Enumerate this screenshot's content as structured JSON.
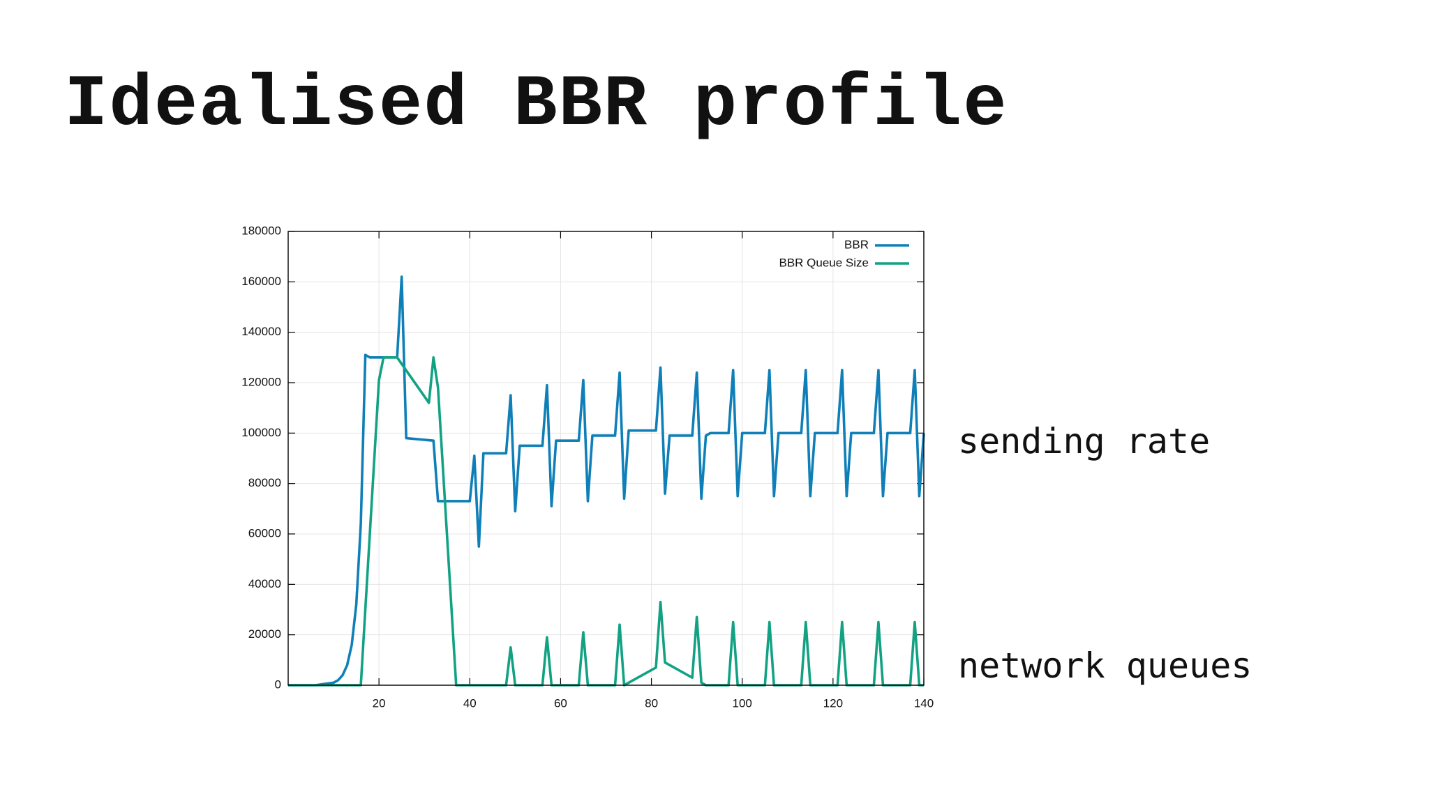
{
  "chart_data": {
    "type": "line",
    "title": "Idealised BBR profile",
    "annotations": [
      "sending rate",
      "network queues"
    ],
    "xlim": [
      0,
      140
    ],
    "xticks": [
      20,
      40,
      60,
      80,
      100,
      120,
      140
    ],
    "ylim": [
      0,
      180000
    ],
    "yticks": [
      0,
      20000,
      40000,
      60000,
      80000,
      100000,
      120000,
      140000,
      160000,
      180000
    ],
    "grid": true,
    "legend": "top-right",
    "series": [
      {
        "name": "BBR",
        "color": "#0f7fb8",
        "x": [
          0,
          2,
          4,
          6,
          8,
          10,
          11,
          12,
          13,
          14,
          15,
          16,
          17,
          18,
          24,
          25,
          26,
          32,
          33,
          40,
          41,
          42,
          43,
          48,
          49,
          50,
          51,
          56,
          57,
          58,
          59,
          64,
          65,
          66,
          67,
          72,
          73,
          74,
          75,
          81,
          82,
          83,
          84,
          89,
          90,
          91,
          92,
          93,
          97,
          98,
          99,
          100,
          105,
          106,
          107,
          108,
          113,
          114,
          115,
          116,
          121,
          122,
          123,
          124,
          129,
          130,
          131,
          132,
          137,
          138,
          139,
          140
        ],
        "values": [
          0,
          0,
          0,
          0,
          500,
          1000,
          2000,
          4000,
          8000,
          16000,
          32000,
          64000,
          131000,
          130000,
          130000,
          162000,
          98000,
          97000,
          73000,
          73000,
          91000,
          55000,
          92000,
          92000,
          115000,
          69000,
          95000,
          95000,
          119000,
          71000,
          97000,
          97000,
          121000,
          73000,
          99000,
          99000,
          124000,
          74000,
          101000,
          101000,
          126000,
          76000,
          99000,
          99000,
          124000,
          74000,
          99000,
          100000,
          100000,
          125000,
          75000,
          100000,
          100000,
          125000,
          75000,
          100000,
          100000,
          125000,
          75000,
          100000,
          100000,
          125000,
          75000,
          100000,
          100000,
          125000,
          75000,
          100000,
          100000,
          125000,
          75000,
          100000
        ]
      },
      {
        "name": "BBR Queue Size",
        "color": "#12a283",
        "x": [
          0,
          16,
          20,
          21,
          24,
          31,
          32,
          33,
          37,
          48,
          49,
          50,
          56,
          57,
          58,
          64,
          65,
          66,
          72,
          73,
          74,
          81,
          82,
          83,
          89,
          90,
          91,
          92,
          97,
          98,
          99,
          105,
          106,
          107,
          113,
          114,
          115,
          121,
          122,
          123,
          129,
          130,
          131,
          137,
          138,
          139,
          140
        ],
        "values": [
          0,
          0,
          121000,
          130000,
          130000,
          112000,
          130000,
          118000,
          0,
          0,
          15000,
          0,
          0,
          19000,
          0,
          0,
          21000,
          0,
          0,
          24000,
          0,
          7000,
          33000,
          9000,
          3000,
          27000,
          1000,
          0,
          0,
          25000,
          0,
          0,
          25000,
          0,
          0,
          25000,
          0,
          0,
          25000,
          0,
          0,
          25000,
          0,
          0,
          25000,
          0,
          0
        ]
      }
    ]
  }
}
